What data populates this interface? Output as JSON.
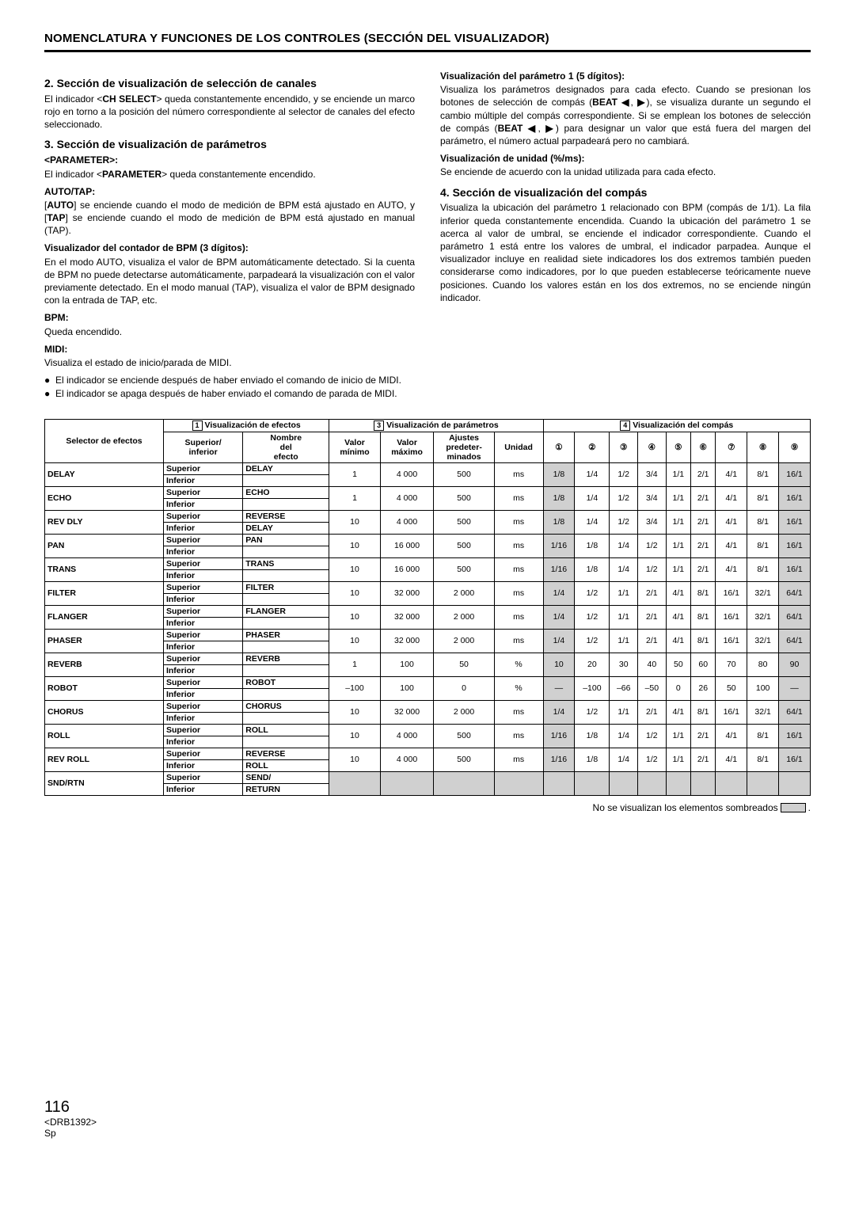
{
  "header": "NOMENCLATURA Y FUNCIONES DE LOS CONTROLES (SECCIÓN DEL VISUALIZADOR)",
  "left": {
    "h2": "2. Sección de visualización de selección de canales",
    "p2": "El indicador <CH SELECT> queda constantemente encendido, y se enciende un marco rojo en torno a la posición del número correspondiente al selector de canales del efecto seleccionado.",
    "h3": "3. Sección de visualización de parámetros",
    "param_label": "<PARAMETER>:",
    "p3a": "El indicador <PARAMETER> queda constantemente encendido.",
    "auto_label": "AUTO/TAP:",
    "p3b": "[AUTO] se enciende cuando el modo de medición de BPM está ajustado en AUTO, y [TAP] se enciende cuando el modo de medición de BPM está ajustado en manual (TAP).",
    "bpm_counter_label": "Visualizador del contador de BPM (3 dígitos):",
    "p3c": "En el modo AUTO, visualiza el valor de BPM automáticamente detectado. Si la cuenta de BPM no puede detectarse automáticamente, parpadeará la visualización con el valor previamente detectado. En el modo manual (TAP), visualiza el valor de BPM designado con la entrada de TAP, etc.",
    "bpm_label": "BPM:",
    "p3d": "Queda encendido.",
    "midi_label": "MIDI:",
    "p3e": "Visualiza el estado de inicio/parada de MIDI.",
    "b1": "El indicador se enciende después de haber enviado el comando de inicio de MIDI.",
    "b2": "El indicador se apaga después de haber enviado el comando de parada de MIDI."
  },
  "right": {
    "vis1_label": "Visualización del parámetro 1 (5 dígitos):",
    "vis1_p": "Visualiza los parámetros designados para cada efecto. Cuando se presionan los botones de selección de compás (BEAT ◀, ▶), se visualiza durante un segundo el cambio múltiple del compás correspondiente. Si se emplean los botones de selección de compás (BEAT ◀, ▶) para designar un valor que está fuera del margen del parámetro, el número actual parpadeará pero no cambiará.",
    "unit_label": "Visualización de unidad (%/ms):",
    "unit_p": "Se enciende de acuerdo con la unidad utilizada para cada efecto.",
    "h4": "4. Sección de visualización del compás",
    "p4": "Visualiza la ubicación del parámetro 1 relacionado con BPM (compás de 1/1). La fila inferior queda constantemente encendida. Cuando la ubicación del parámetro 1 se acerca al valor de umbral, se enciende el indicador correspondiente. Cuando el parámetro 1 está entre los valores de umbral, el indicador parpadea. Aunque el visualizador incluye en realidad siete indicadores los dos extremos también pueden considerarse como indicadores, por lo que pueden establecerse teóricamente nueve posiciones. Cuando los valores están en los dos extremos, no se enciende ningún indicador."
  },
  "table": {
    "group1": "Visualización de efectos",
    "group3": "Visualización de parámetros",
    "group4": "Visualización del compás",
    "sel_h": "Selector de efectos",
    "cols": [
      "Superior/ inferior",
      "Nombre del efecto",
      "Valor mínimo",
      "Valor máximo",
      "Ajustes predeter- minados",
      "Unidad",
      "①",
      "②",
      "③",
      "④",
      "⑤",
      "⑥",
      "⑦",
      "⑧",
      "⑨"
    ],
    "rows": [
      {
        "sel": "DELAY",
        "sup": "Superior",
        "inf": "Inferior",
        "name1": "DELAY",
        "name2": "",
        "min": "1",
        "max": "4 000",
        "def": "500",
        "unit": "ms",
        "b": [
          "1/8",
          "1/4",
          "1/2",
          "3/4",
          "1/1",
          "2/1",
          "4/1",
          "8/1",
          "16/1"
        ],
        "sh": [
          true,
          false,
          false,
          false,
          false,
          false,
          false,
          false,
          true
        ]
      },
      {
        "sel": "ECHO",
        "sup": "Superior",
        "inf": "Inferior",
        "name1": "ECHO",
        "name2": "",
        "min": "1",
        "max": "4 000",
        "def": "500",
        "unit": "ms",
        "b": [
          "1/8",
          "1/4",
          "1/2",
          "3/4",
          "1/1",
          "2/1",
          "4/1",
          "8/1",
          "16/1"
        ],
        "sh": [
          true,
          false,
          false,
          false,
          false,
          false,
          false,
          false,
          true
        ]
      },
      {
        "sel": "REV DLY",
        "sup": "Superior",
        "inf": "Inferior",
        "name1": "REVERSE",
        "name2": "DELAY",
        "min": "10",
        "max": "4 000",
        "def": "500",
        "unit": "ms",
        "b": [
          "1/8",
          "1/4",
          "1/2",
          "3/4",
          "1/1",
          "2/1",
          "4/1",
          "8/1",
          "16/1"
        ],
        "sh": [
          true,
          false,
          false,
          false,
          false,
          false,
          false,
          false,
          true
        ]
      },
      {
        "sel": "PAN",
        "sup": "Superior",
        "inf": "Inferior",
        "name1": "PAN",
        "name2": "",
        "min": "10",
        "max": "16 000",
        "def": "500",
        "unit": "ms",
        "b": [
          "1/16",
          "1/8",
          "1/4",
          "1/2",
          "1/1",
          "2/1",
          "4/1",
          "8/1",
          "16/1"
        ],
        "sh": [
          true,
          false,
          false,
          false,
          false,
          false,
          false,
          false,
          true
        ]
      },
      {
        "sel": "TRANS",
        "sup": "Superior",
        "inf": "Inferior",
        "name1": "TRANS",
        "name2": "",
        "min": "10",
        "max": "16 000",
        "def": "500",
        "unit": "ms",
        "b": [
          "1/16",
          "1/8",
          "1/4",
          "1/2",
          "1/1",
          "2/1",
          "4/1",
          "8/1",
          "16/1"
        ],
        "sh": [
          true,
          false,
          false,
          false,
          false,
          false,
          false,
          false,
          true
        ]
      },
      {
        "sel": "FILTER",
        "sup": "Superior",
        "inf": "Inferior",
        "name1": "FILTER",
        "name2": "",
        "min": "10",
        "max": "32 000",
        "def": "2 000",
        "unit": "ms",
        "b": [
          "1/4",
          "1/2",
          "1/1",
          "2/1",
          "4/1",
          "8/1",
          "16/1",
          "32/1",
          "64/1"
        ],
        "sh": [
          true,
          false,
          false,
          false,
          false,
          false,
          false,
          false,
          true
        ]
      },
      {
        "sel": "FLANGER",
        "sup": "Superior",
        "inf": "Inferior",
        "name1": "FLANGER",
        "name2": "",
        "min": "10",
        "max": "32 000",
        "def": "2 000",
        "unit": "ms",
        "b": [
          "1/4",
          "1/2",
          "1/1",
          "2/1",
          "4/1",
          "8/1",
          "16/1",
          "32/1",
          "64/1"
        ],
        "sh": [
          true,
          false,
          false,
          false,
          false,
          false,
          false,
          false,
          true
        ]
      },
      {
        "sel": "PHASER",
        "sup": "Superior",
        "inf": "Inferior",
        "name1": "PHASER",
        "name2": "",
        "min": "10",
        "max": "32 000",
        "def": "2 000",
        "unit": "ms",
        "b": [
          "1/4",
          "1/2",
          "1/1",
          "2/1",
          "4/1",
          "8/1",
          "16/1",
          "32/1",
          "64/1"
        ],
        "sh": [
          true,
          false,
          false,
          false,
          false,
          false,
          false,
          false,
          true
        ]
      },
      {
        "sel": "REVERB",
        "sup": "Superior",
        "inf": "Inferior",
        "name1": "REVERB",
        "name2": "",
        "min": "1",
        "max": "100",
        "def": "50",
        "unit": "%",
        "b": [
          "10",
          "20",
          "30",
          "40",
          "50",
          "60",
          "70",
          "80",
          "90"
        ],
        "sh": [
          true,
          false,
          false,
          false,
          false,
          false,
          false,
          false,
          true
        ]
      },
      {
        "sel": "ROBOT",
        "sup": "Superior",
        "inf": "Inferior",
        "name1": "ROBOT",
        "name2": "",
        "min": "–100",
        "max": "100",
        "def": "0",
        "unit": "%",
        "b": [
          "—",
          "–100",
          "–66",
          "–50",
          "0",
          "26",
          "50",
          "100",
          "—"
        ],
        "sh": [
          true,
          false,
          false,
          false,
          false,
          false,
          false,
          false,
          true
        ]
      },
      {
        "sel": "CHORUS",
        "sup": "Superior",
        "inf": "Inferior",
        "name1": "CHORUS",
        "name2": "",
        "min": "10",
        "max": "32 000",
        "def": "2 000",
        "unit": "ms",
        "b": [
          "1/4",
          "1/2",
          "1/1",
          "2/1",
          "4/1",
          "8/1",
          "16/1",
          "32/1",
          "64/1"
        ],
        "sh": [
          true,
          false,
          false,
          false,
          false,
          false,
          false,
          false,
          true
        ]
      },
      {
        "sel": "ROLL",
        "sup": "Superior",
        "inf": "Inferior",
        "name1": "ROLL",
        "name2": "",
        "min": "10",
        "max": "4 000",
        "def": "500",
        "unit": "ms",
        "b": [
          "1/16",
          "1/8",
          "1/4",
          "1/2",
          "1/1",
          "2/1",
          "4/1",
          "8/1",
          "16/1"
        ],
        "sh": [
          true,
          false,
          false,
          false,
          false,
          false,
          false,
          false,
          true
        ]
      },
      {
        "sel": "REV ROLL",
        "sup": "Superior",
        "inf": "Inferior",
        "name1": "REVERSE",
        "name2": "ROLL",
        "min": "10",
        "max": "4 000",
        "def": "500",
        "unit": "ms",
        "b": [
          "1/16",
          "1/8",
          "1/4",
          "1/2",
          "1/1",
          "2/1",
          "4/1",
          "8/1",
          "16/1"
        ],
        "sh": [
          true,
          false,
          false,
          false,
          false,
          false,
          false,
          false,
          true
        ]
      },
      {
        "sel": "SND/RTN",
        "sup": "Superior",
        "inf": "Inferior",
        "name1": "SEND/",
        "name2": "RETURN",
        "min": "",
        "max": "",
        "def": "",
        "unit": "",
        "b": [
          "",
          "",
          "",
          "",
          "",
          "",
          "",
          "",
          ""
        ],
        "sh": [
          true,
          true,
          true,
          true,
          true,
          true,
          true,
          true,
          true
        ],
        "shMain": true
      }
    ]
  },
  "footnote": "No se visualizan los elementos sombreados",
  "page": {
    "num": "116",
    "code": "<DRB1392>",
    "lang": "Sp"
  }
}
